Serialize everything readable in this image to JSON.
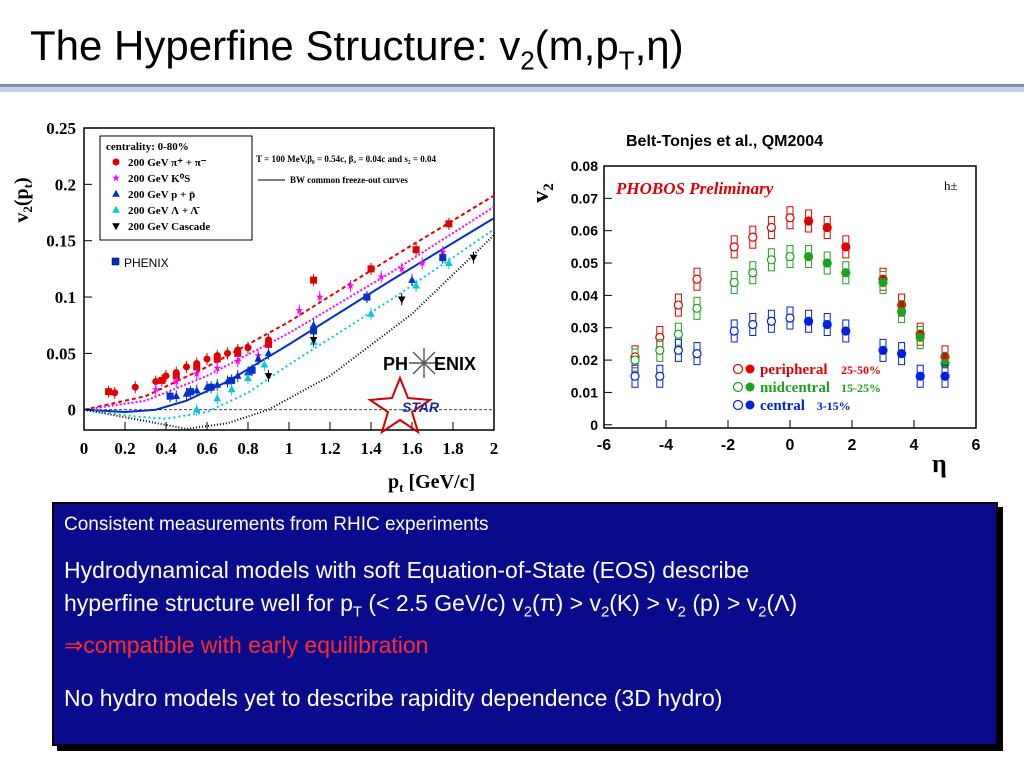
{
  "title": {
    "main": "The Hyperfine Structure: v",
    "sub1": "2",
    "mid": "(m,p",
    "sub2": "T",
    "end": ",η)"
  },
  "colors": {
    "accent_bar": "#7d8fb8",
    "panel_bg": "#0a0a8c",
    "highlight": "#ff2a2a"
  },
  "chart_data": [
    {
      "type": "scatter",
      "ylabel_main": "v",
      "ylabel_sub": "2",
      "ylabel_paren": "(p",
      "ylabel_sub2": "t",
      "ylabel_end": ")",
      "xlabel_main": "p",
      "xlabel_sub": "t",
      "xlabel_units": " [GeV/c]",
      "xlim": [
        0,
        2
      ],
      "ylim": [
        -0.018,
        0.25
      ],
      "xticks": [
        "0",
        "0.2",
        "0.4",
        "0.6",
        "0.8",
        "1",
        "1.2",
        "1.4",
        "1.6",
        "1.8",
        "2"
      ],
      "yticks": [
        "0",
        "0.05",
        "0.1",
        "0.15",
        "0.2",
        "0.25"
      ],
      "legend_title": "centrality: 0-80%",
      "legend": [
        {
          "label": "200 GeV π⁺ + π⁻",
          "marker": "circle",
          "color": "#e00000"
        },
        {
          "label": "200 GeV K⁰S",
          "marker": "star",
          "color": "#ff00ff"
        },
        {
          "label": "200 GeV p + p̄",
          "marker": "triangle",
          "color": "#0030c8"
        },
        {
          "label": "200 GeV Λ + Λ̄",
          "marker": "triangle",
          "color": "#00c8e0"
        },
        {
          "label": "200 GeV Cascade",
          "marker": "triangle-down",
          "color": "#000000"
        }
      ],
      "phenix_label": "PHENIX",
      "model_line1": "T = 100 MeV,β₀ = 0.54c, βₐ = 0.04c and s₂ = 0.04",
      "model_line2": "BW common freeze-out curves",
      "logo_phenix": {
        "left": "PH",
        "right": "ENIX"
      },
      "logo_star": "STAR",
      "series": [
        {
          "name": "π",
          "color": "#e00000",
          "marker": "circle",
          "x": [
            0.15,
            0.25,
            0.35,
            0.4,
            0.45,
            0.5,
            0.55,
            0.6,
            0.65,
            0.7,
            0.75,
            0.8,
            0.9
          ],
          "y": [
            0.015,
            0.02,
            0.025,
            0.03,
            0.033,
            0.038,
            0.041,
            0.045,
            0.048,
            0.05,
            0.053,
            0.055,
            0.062
          ]
        },
        {
          "name": "πP",
          "color": "#e00000",
          "marker": "square",
          "x": [
            0.12,
            0.38,
            0.45,
            0.55,
            0.65,
            0.75,
            0.9,
            1.12,
            1.4,
            1.62,
            1.78
          ],
          "y": [
            0.016,
            0.026,
            0.03,
            0.038,
            0.045,
            0.05,
            0.058,
            0.115,
            0.125,
            0.142,
            0.165
          ]
        },
        {
          "name": "K",
          "color": "#ff00ff",
          "marker": "star",
          "x": [
            0.35,
            0.45,
            0.55,
            0.65,
            0.75,
            0.85,
            1.05,
            1.15,
            1.3,
            1.45,
            1.55,
            1.65,
            1.75
          ],
          "y": [
            0.018,
            0.025,
            0.032,
            0.037,
            0.043,
            0.048,
            0.088,
            0.1,
            0.11,
            0.118,
            0.125,
            0.13,
            0.14
          ]
        },
        {
          "name": "p",
          "color": "#0030c8",
          "marker": "triangle",
          "x": [
            0.45,
            0.5,
            0.55,
            0.6,
            0.65,
            0.7,
            0.75,
            0.8,
            0.85,
            0.9,
            1.12,
            1.38,
            1.6
          ],
          "y": [
            0.012,
            0.014,
            0.017,
            0.02,
            0.022,
            0.025,
            0.03,
            0.033,
            0.045,
            0.05,
            0.075,
            0.1,
            0.115
          ]
        },
        {
          "name": "pP",
          "color": "#0030c8",
          "marker": "square",
          "x": [
            0.42,
            0.52,
            0.62,
            0.72,
            0.82,
            1.12,
            1.38,
            1.75
          ],
          "y": [
            0.012,
            0.016,
            0.02,
            0.026,
            0.035,
            0.07,
            0.1,
            0.135
          ]
        },
        {
          "name": "Λ",
          "color": "#00c8e0",
          "marker": "triangle",
          "x": [
            0.55,
            0.65,
            0.72,
            0.8,
            0.88,
            1.12,
            1.4,
            1.62,
            1.78
          ],
          "y": [
            0.0,
            0.01,
            0.018,
            0.028,
            0.04,
            0.06,
            0.085,
            0.11,
            0.13
          ]
        },
        {
          "name": "Ξ",
          "color": "#000000",
          "marker": "triangle-down",
          "x": [
            0.9,
            1.12,
            1.55,
            1.9
          ],
          "y": [
            0.03,
            0.062,
            0.098,
            0.135
          ]
        }
      ],
      "curves": [
        {
          "color": "#e00000",
          "dash": "4,3",
          "x": [
            0,
            0.3,
            0.6,
            1.0,
            1.5,
            2.0
          ],
          "y": [
            0,
            0.012,
            0.038,
            0.078,
            0.135,
            0.19
          ]
        },
        {
          "color": "#ff00ff",
          "dash": "2,2",
          "x": [
            0,
            0.3,
            0.6,
            1.0,
            1.5,
            2.0
          ],
          "y": [
            0,
            0.008,
            0.03,
            0.068,
            0.122,
            0.18
          ]
        },
        {
          "color": "#0030c8",
          "dash": "",
          "x": [
            0,
            0.2,
            0.35,
            0.5,
            0.7,
            1.0,
            1.5,
            2.0
          ],
          "y": [
            0,
            -0.002,
            0.0,
            0.008,
            0.025,
            0.058,
            0.115,
            0.17
          ]
        },
        {
          "color": "#00c8e0",
          "dash": "2,3",
          "x": [
            0,
            0.25,
            0.4,
            0.6,
            0.8,
            1.0,
            1.5,
            2.0
          ],
          "y": [
            0,
            -0.006,
            -0.008,
            -0.002,
            0.015,
            0.04,
            0.098,
            0.16
          ]
        },
        {
          "color": "#000000",
          "dash": "1,2",
          "x": [
            0,
            0.3,
            0.5,
            0.7,
            0.9,
            1.2,
            1.6,
            2.0
          ],
          "y": [
            0,
            -0.01,
            -0.017,
            -0.012,
            0.0,
            0.03,
            0.085,
            0.155
          ]
        }
      ]
    },
    {
      "type": "scatter",
      "reference": "Belt-Tonjes et al., QM2004",
      "inset_title": "PHOBOS Preliminary",
      "particle": "h±",
      "ylabel_main": "v",
      "ylabel_sub": "2",
      "xlabel": "η",
      "xlim": [
        -6,
        6
      ],
      "ylim": [
        -0.001,
        0.08
      ],
      "xticks": [
        "-6",
        "-4",
        "-2",
        "0",
        "2",
        "4",
        "6"
      ],
      "yticks": [
        "0",
        "0.01",
        "0.02",
        "0.03",
        "0.04",
        "0.05",
        "0.06",
        "0.07",
        "0.08"
      ],
      "legend": [
        {
          "label": "peripheral",
          "range": "25-50%",
          "color": "#e00000"
        },
        {
          "label": "midcentral",
          "range": "15-25%",
          "color": "#20a020"
        },
        {
          "label": "central",
          "range": "3-15%",
          "color": "#0020e0"
        }
      ],
      "series": [
        {
          "name": "peripheral",
          "color": "#e00000",
          "open": {
            "x": [
              -5,
              -4.2,
              -3.6,
              -3.0,
              -1.8,
              -1.2,
              -0.6,
              0.0
            ],
            "y": [
              0.021,
              0.027,
              0.037,
              0.045,
              0.055,
              0.058,
              0.061,
              0.064
            ]
          },
          "filled": {
            "x": [
              0.6,
              1.2,
              1.8,
              3.0,
              3.6,
              4.2,
              5.0
            ],
            "y": [
              0.063,
              0.061,
              0.055,
              0.045,
              0.037,
              0.028,
              0.021
            ]
          }
        },
        {
          "name": "midcentral",
          "color": "#20a020",
          "open": {
            "x": [
              -5,
              -4.2,
              -3.6,
              -3.0,
              -1.8,
              -1.2,
              -0.6,
              0.0
            ],
            "y": [
              0.02,
              0.023,
              0.028,
              0.036,
              0.044,
              0.047,
              0.051,
              0.052
            ]
          },
          "filled": {
            "x": [
              0.6,
              1.2,
              1.8,
              3.0,
              3.6,
              4.2,
              5.0
            ],
            "y": [
              0.052,
              0.05,
              0.047,
              0.044,
              0.035,
              0.027,
              0.019
            ]
          }
        },
        {
          "name": "central",
          "color": "#0020e0",
          "open": {
            "x": [
              -5,
              -4.2,
              -3.6,
              -3.0,
              -1.8,
              -1.2,
              -0.6,
              0.0
            ],
            "y": [
              0.015,
              0.015,
              0.023,
              0.022,
              0.029,
              0.031,
              0.032,
              0.033
            ]
          },
          "filled": {
            "x": [
              0.6,
              1.2,
              1.8,
              3.0,
              3.6,
              4.2,
              5.0
            ],
            "y": [
              0.032,
              0.031,
              0.029,
              0.023,
              0.022,
              0.015,
              0.015
            ]
          }
        }
      ]
    }
  ],
  "panel": {
    "line1": "Consistent measurements from RHIC experiments",
    "line2a": "Hydrodynamical models with soft Equation-of-State (EOS) describe",
    "line3a": "hyperfine structure well for p",
    "line3_sub": "T",
    "line3b": " (< 2.5 GeV/c)  v",
    "line3c": "(π) > v",
    "line3d": "(K) > v",
    "line3e": " (p) > v",
    "line3f": "(Λ)",
    "sub2": "2",
    "line4": "⇒compatible with early equilibration",
    "line5": "No hydro models yet to describe rapidity dependence (3D hydro)"
  }
}
